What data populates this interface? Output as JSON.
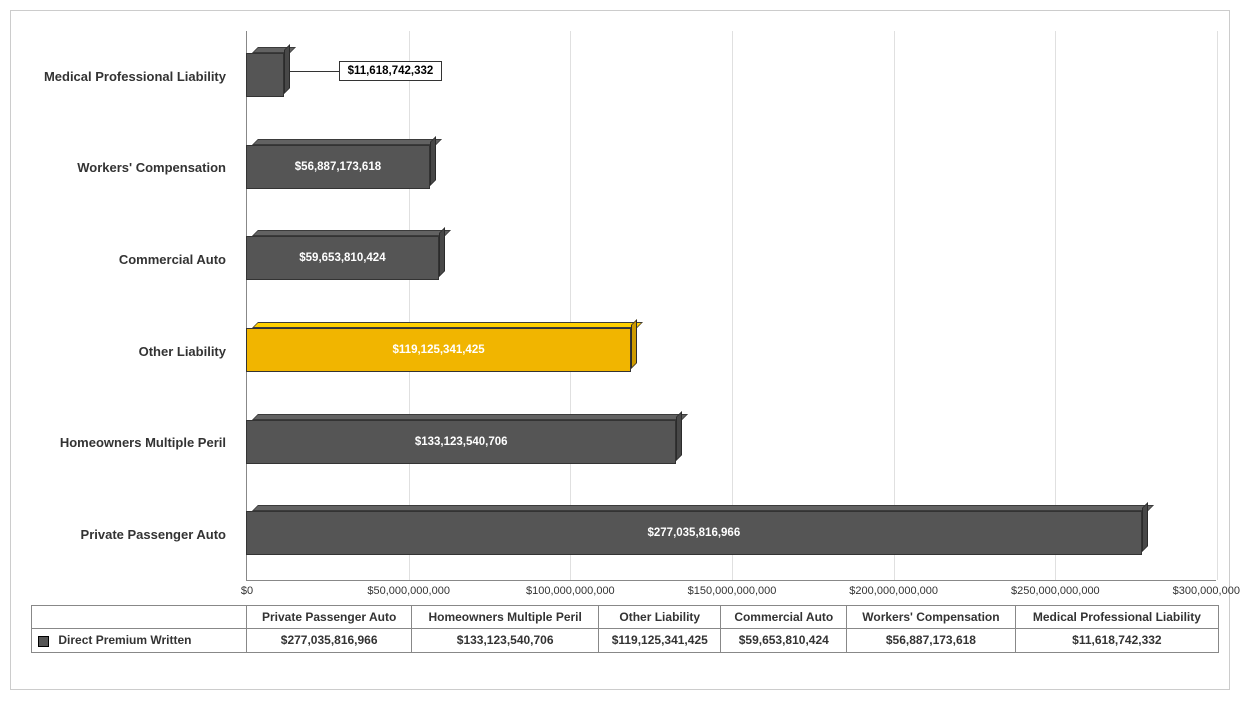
{
  "chart": {
    "type": "bar-horizontal-3d",
    "series_name": "Direct Premium Written",
    "series_marker_color": "#555555",
    "background_color": "#ffffff",
    "grid_color": "#e0e0e0",
    "axis_color": "#888888",
    "label_fontsize": 13,
    "tick_fontsize": 11,
    "value_fontsize": 11.5,
    "x_axis": {
      "min": 0,
      "max": 300000000000,
      "tick_step": 50000000000,
      "tick_labels": [
        "$0",
        "$50,000,000,000",
        "$100,000,000,000",
        "$150,000,000,000",
        "$200,000,000,000",
        "$250,000,000,000",
        "$300,000,000,000"
      ]
    },
    "categories": [
      {
        "label": "Private Passenger Auto",
        "value": 277035816966,
        "value_label": "$277,035,816,966",
        "bar_color": "#555555",
        "label_inside": true
      },
      {
        "label": "Homeowners Multiple Peril",
        "value": 133123540706,
        "value_label": "$133,123,540,706",
        "bar_color": "#555555",
        "label_inside": true
      },
      {
        "label": "Other Liability",
        "value": 119125341425,
        "value_label": "$119,125,341,425",
        "bar_color": "#f1b500",
        "label_inside": true
      },
      {
        "label": "Commercial Auto",
        "value": 59653810424,
        "value_label": "$59,653,810,424",
        "bar_color": "#555555",
        "label_inside": true
      },
      {
        "label": "Workers' Compensation",
        "value": 56887173618,
        "value_label": "$56,887,173,618",
        "bar_color": "#555555",
        "label_inside": true
      },
      {
        "label": "Medical Professional Liability",
        "value": 11618742332,
        "value_label": "$11,618,742,332",
        "bar_color": "#555555",
        "label_inside": false,
        "callout": true
      }
    ]
  },
  "table": {
    "row_header": "Direct Premium Written",
    "columns": [
      "Private Passenger Auto",
      "Homeowners Multiple Peril",
      "Other Liability",
      "Commercial Auto",
      "Workers' Compensation",
      "Medical Professional Liability"
    ],
    "row_values": [
      "$277,035,816,966",
      "$133,123,540,706",
      "$119,125,341,425",
      "$59,653,810,424",
      "$56,887,173,618",
      "$11,618,742,332"
    ]
  }
}
